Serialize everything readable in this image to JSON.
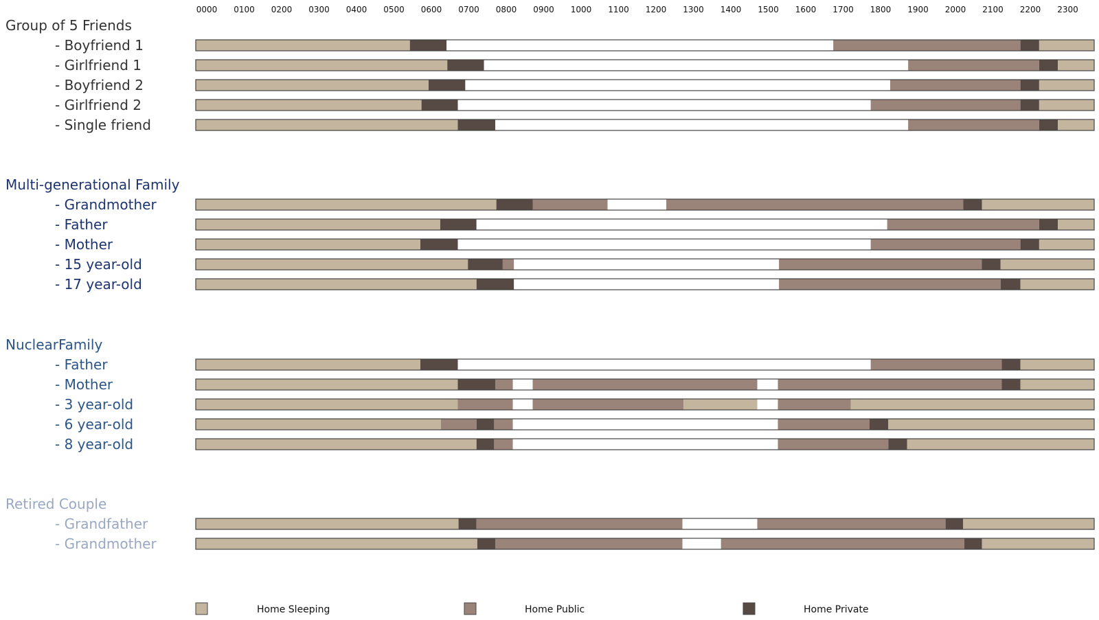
{
  "colors": {
    "sleeping": "#c4b69e",
    "public": "#9a8378",
    "private": "#574a45",
    "away": "#ffffff",
    "outline": "#444444"
  },
  "chart_data": {
    "type": "timeline",
    "x_ticks": [
      "0000",
      "0100",
      "0200",
      "0300",
      "0400",
      "0500",
      "0600",
      "0700",
      "0800",
      "0900",
      "1000",
      "1100",
      "1200",
      "1300",
      "1400",
      "1500",
      "1600",
      "1700",
      "1800",
      "1900",
      "2000",
      "2100",
      "2200",
      "2300"
    ],
    "x_range_hours": [
      0,
      24
    ],
    "legend": [
      {
        "state": "sleeping",
        "label": "Home Sleeping"
      },
      {
        "state": "public",
        "label": "Home Public"
      },
      {
        "state": "private",
        "label": "Home Private"
      }
    ],
    "groups": [
      {
        "title": "Group of 5 Friends",
        "title_color": "#333333",
        "rows": [
          {
            "label": "- Boyfriend 1",
            "segments": [
              [
                0,
                5.72,
                "sleeping"
              ],
              [
                5.72,
                6.7,
                "private"
              ],
              [
                6.7,
                17.03,
                "away"
              ],
              [
                17.03,
                22.03,
                "public"
              ],
              [
                22.03,
                22.53,
                "private"
              ],
              [
                22.53,
                24,
                "sleeping"
              ]
            ]
          },
          {
            "label": "- Girlfriend 1",
            "segments": [
              [
                0,
                6.72,
                "sleeping"
              ],
              [
                6.72,
                7.7,
                "private"
              ],
              [
                7.7,
                19.03,
                "away"
              ],
              [
                19.03,
                22.53,
                "public"
              ],
              [
                22.53,
                23.03,
                "private"
              ],
              [
                23.03,
                24,
                "sleeping"
              ]
            ]
          },
          {
            "label": "- Boyfriend 2",
            "segments": [
              [
                0,
                6.22,
                "sleeping"
              ],
              [
                6.22,
                7.2,
                "private"
              ],
              [
                7.2,
                18.55,
                "away"
              ],
              [
                18.55,
                22.03,
                "public"
              ],
              [
                22.03,
                22.53,
                "private"
              ],
              [
                22.53,
                24,
                "sleeping"
              ]
            ]
          },
          {
            "label": "- Girlfriend 2",
            "segments": [
              [
                0,
                6.03,
                "sleeping"
              ],
              [
                6.03,
                7.0,
                "private"
              ],
              [
                7.0,
                18.03,
                "away"
              ],
              [
                18.03,
                22.03,
                "public"
              ],
              [
                22.03,
                22.53,
                "private"
              ],
              [
                22.53,
                24,
                "sleeping"
              ]
            ]
          },
          {
            "label": "- Single friend",
            "segments": [
              [
                0,
                7.0,
                "sleeping"
              ],
              [
                7.0,
                8.0,
                "private"
              ],
              [
                8.0,
                19.03,
                "away"
              ],
              [
                19.03,
                22.53,
                "public"
              ],
              [
                22.53,
                23.03,
                "private"
              ],
              [
                23.03,
                24,
                "sleeping"
              ]
            ]
          }
        ]
      },
      {
        "title": "Multi-generational Family",
        "title_color": "#1d3470",
        "rows": [
          {
            "label": "- Grandmother",
            "segments": [
              [
                0,
                8.03,
                "sleeping"
              ],
              [
                8.03,
                9.0,
                "private"
              ],
              [
                9.0,
                11.0,
                "public"
              ],
              [
                11.0,
                12.57,
                "away"
              ],
              [
                12.57,
                20.5,
                "public"
              ],
              [
                20.5,
                21.0,
                "private"
              ],
              [
                21.0,
                24,
                "sleeping"
              ]
            ]
          },
          {
            "label": "- Father",
            "segments": [
              [
                0,
                6.53,
                "sleeping"
              ],
              [
                6.53,
                7.5,
                "private"
              ],
              [
                7.5,
                18.47,
                "away"
              ],
              [
                18.47,
                22.53,
                "public"
              ],
              [
                22.53,
                23.03,
                "private"
              ],
              [
                23.03,
                24,
                "sleeping"
              ]
            ]
          },
          {
            "label": "- Mother",
            "segments": [
              [
                0,
                6.0,
                "sleeping"
              ],
              [
                6.0,
                7.0,
                "private"
              ],
              [
                7.0,
                18.03,
                "away"
              ],
              [
                18.03,
                22.03,
                "public"
              ],
              [
                22.03,
                22.53,
                "private"
              ],
              [
                22.53,
                24,
                "sleeping"
              ]
            ]
          },
          {
            "label": "- 15 year-old",
            "segments": [
              [
                0,
                7.27,
                "sleeping"
              ],
              [
                7.27,
                8.2,
                "private"
              ],
              [
                8.2,
                8.5,
                "public"
              ],
              [
                8.5,
                15.58,
                "away"
              ],
              [
                15.58,
                21.0,
                "public"
              ],
              [
                21.0,
                21.5,
                "private"
              ],
              [
                21.5,
                24,
                "sleeping"
              ]
            ]
          },
          {
            "label": "- 17 year-old",
            "segments": [
              [
                0,
                7.5,
                "sleeping"
              ],
              [
                7.5,
                8.5,
                "private"
              ],
              [
                8.5,
                15.58,
                "away"
              ],
              [
                15.58,
                21.5,
                "public"
              ],
              [
                21.5,
                22.03,
                "private"
              ],
              [
                22.03,
                24,
                "sleeping"
              ]
            ]
          }
        ]
      },
      {
        "title": "NuclearFamily",
        "title_color": "#2b5587",
        "rows": [
          {
            "label": "- Father",
            "segments": [
              [
                0,
                6.0,
                "sleeping"
              ],
              [
                6.0,
                7.0,
                "private"
              ],
              [
                7.0,
                18.03,
                "away"
              ],
              [
                18.03,
                21.53,
                "public"
              ],
              [
                21.53,
                22.03,
                "private"
              ],
              [
                22.03,
                24,
                "sleeping"
              ]
            ]
          },
          {
            "label": "- Mother",
            "segments": [
              [
                0,
                7.0,
                "sleeping"
              ],
              [
                7.0,
                8.0,
                "private"
              ],
              [
                8.0,
                8.47,
                "public"
              ],
              [
                8.47,
                9.0,
                "away"
              ],
              [
                9.0,
                15.0,
                "public"
              ],
              [
                15.0,
                15.55,
                "away"
              ],
              [
                15.55,
                21.53,
                "public"
              ],
              [
                21.53,
                22.03,
                "private"
              ],
              [
                22.03,
                24,
                "sleeping"
              ]
            ]
          },
          {
            "label": "- 3 year-old",
            "segments": [
              [
                0,
                7.0,
                "sleeping"
              ],
              [
                7.0,
                8.47,
                "public"
              ],
              [
                8.47,
                9.0,
                "away"
              ],
              [
                9.0,
                13.03,
                "public"
              ],
              [
                13.03,
                15.0,
                "sleeping"
              ],
              [
                15.0,
                15.55,
                "away"
              ],
              [
                15.55,
                17.5,
                "public"
              ],
              [
                17.5,
                24,
                "sleeping"
              ]
            ]
          },
          {
            "label": "- 6 year-old",
            "segments": [
              [
                0,
                6.55,
                "sleeping"
              ],
              [
                6.55,
                7.5,
                "public"
              ],
              [
                7.5,
                7.97,
                "private"
              ],
              [
                7.97,
                8.47,
                "public"
              ],
              [
                8.47,
                15.55,
                "away"
              ],
              [
                15.55,
                18.0,
                "public"
              ],
              [
                18.0,
                18.5,
                "private"
              ],
              [
                18.5,
                24,
                "sleeping"
              ]
            ]
          },
          {
            "label": "- 8 year-old",
            "segments": [
              [
                0,
                7.5,
                "sleeping"
              ],
              [
                7.5,
                7.97,
                "private"
              ],
              [
                7.97,
                8.47,
                "public"
              ],
              [
                8.47,
                15.55,
                "away"
              ],
              [
                15.55,
                18.5,
                "public"
              ],
              [
                18.5,
                19.0,
                "private"
              ],
              [
                19.0,
                24,
                "sleeping"
              ]
            ]
          }
        ]
      },
      {
        "title": "Retired Couple",
        "title_color": "#9aa7c0",
        "rows": [
          {
            "label": "- Grandfather",
            "segments": [
              [
                0,
                7.02,
                "sleeping"
              ],
              [
                7.02,
                7.5,
                "private"
              ],
              [
                7.5,
                13.0,
                "public"
              ],
              [
                13.0,
                15.0,
                "away"
              ],
              [
                15.0,
                20.03,
                "public"
              ],
              [
                20.03,
                20.5,
                "private"
              ],
              [
                20.5,
                24,
                "sleeping"
              ]
            ]
          },
          {
            "label": "- Grandmother",
            "segments": [
              [
                0,
                7.52,
                "sleeping"
              ],
              [
                7.52,
                8.0,
                "private"
              ],
              [
                8.0,
                13.0,
                "public"
              ],
              [
                13.0,
                14.03,
                "away"
              ],
              [
                14.03,
                20.53,
                "public"
              ],
              [
                20.53,
                21.0,
                "private"
              ],
              [
                21.0,
                24,
                "sleeping"
              ]
            ]
          }
        ]
      }
    ]
  }
}
